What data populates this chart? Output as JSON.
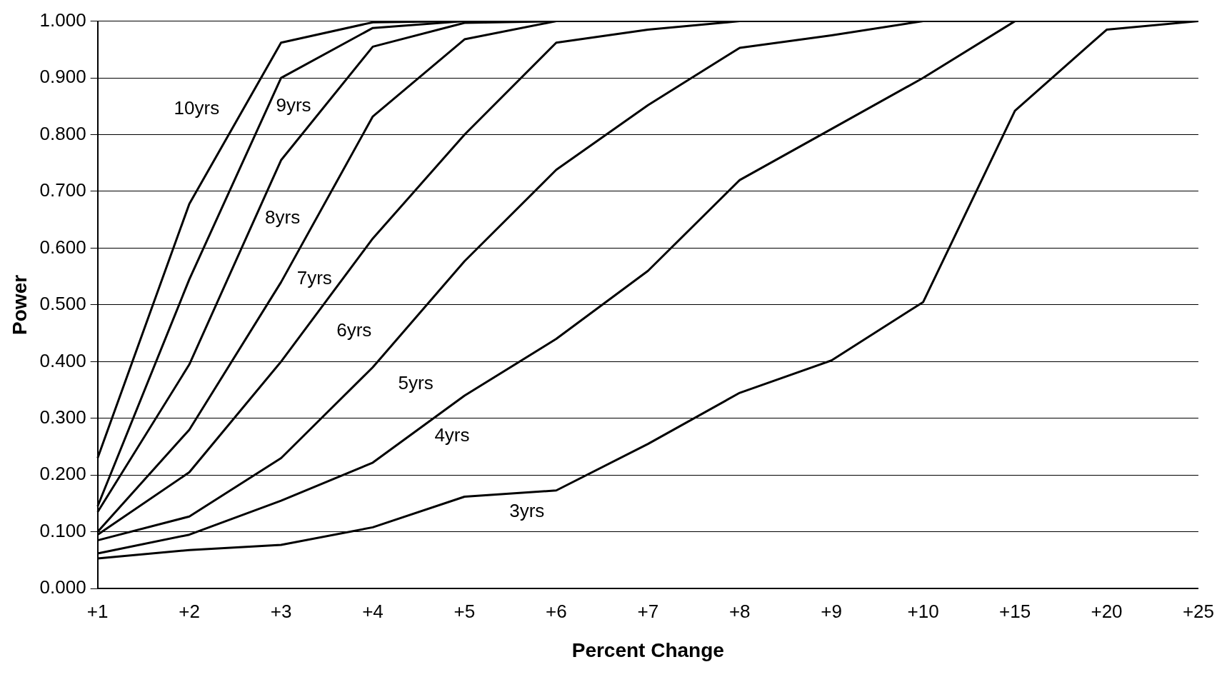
{
  "chart_data": {
    "type": "line",
    "xlabel": "Percent Change",
    "ylabel": "Power",
    "categories": [
      "+1",
      "+2",
      "+3",
      "+4",
      "+5",
      "+6",
      "+7",
      "+8",
      "+9",
      "+10",
      "+15",
      "+20",
      "+25"
    ],
    "series": [
      {
        "name": "10yrs",
        "color": "#000000",
        "values": [
          0.23,
          0.678,
          0.962,
          0.998,
          1.0,
          1.0,
          1.0,
          1.0,
          1.0,
          1.0,
          1.0,
          1.0,
          1.0
        ]
      },
      {
        "name": "9yrs",
        "color": "#000000",
        "values": [
          0.145,
          0.545,
          0.9,
          0.988,
          1.0,
          1.0,
          1.0,
          1.0,
          1.0,
          1.0,
          1.0,
          1.0,
          1.0
        ]
      },
      {
        "name": "8yrs",
        "color": "#000000",
        "values": [
          0.135,
          0.395,
          0.755,
          0.955,
          0.997,
          1.0,
          1.0,
          1.0,
          1.0,
          1.0,
          1.0,
          1.0,
          1.0
        ]
      },
      {
        "name": "7yrs",
        "color": "#000000",
        "values": [
          0.1,
          0.28,
          0.54,
          0.832,
          0.968,
          1.0,
          1.0,
          1.0,
          1.0,
          1.0,
          1.0,
          1.0,
          1.0
        ]
      },
      {
        "name": "6yrs",
        "color": "#000000",
        "values": [
          0.095,
          0.205,
          0.4,
          0.617,
          0.8,
          0.962,
          0.985,
          1.0,
          1.0,
          1.0,
          1.0,
          1.0,
          1.0
        ]
      },
      {
        "name": "5yrs",
        "color": "#000000",
        "values": [
          0.085,
          0.127,
          0.23,
          0.39,
          0.577,
          0.738,
          0.852,
          0.953,
          0.975,
          1.0,
          1.0,
          1.0,
          1.0
        ]
      },
      {
        "name": "4yrs",
        "color": "#000000",
        "values": [
          0.062,
          0.095,
          0.155,
          0.222,
          0.34,
          0.44,
          0.56,
          0.72,
          0.81,
          0.9,
          1.0,
          1.0,
          1.0
        ]
      },
      {
        "name": "3yrs",
        "color": "#000000",
        "values": [
          0.053,
          0.068,
          0.077,
          0.108,
          0.162,
          0.173,
          0.255,
          0.345,
          0.402,
          0.505,
          0.842,
          0.985,
          1.0
        ]
      }
    ],
    "ylim": [
      0,
      1
    ],
    "yticks": [
      {
        "value": 0,
        "label": "0.000"
      },
      {
        "value": 0.1,
        "label": "0.100"
      },
      {
        "value": 0.2,
        "label": "0.200"
      },
      {
        "value": 0.3,
        "label": "0.300"
      },
      {
        "value": 0.4,
        "label": "0.400"
      },
      {
        "value": 0.5,
        "label": "0.500"
      },
      {
        "value": 0.6,
        "label": "0.600"
      },
      {
        "value": 0.7,
        "label": "0.700"
      },
      {
        "value": 0.8,
        "label": "0.800"
      },
      {
        "value": 0.9,
        "label": "0.900"
      },
      {
        "value": 1,
        "label": "1.000"
      }
    ],
    "grid": "y",
    "legend": false,
    "marker": "none",
    "line_style": "solid"
  }
}
